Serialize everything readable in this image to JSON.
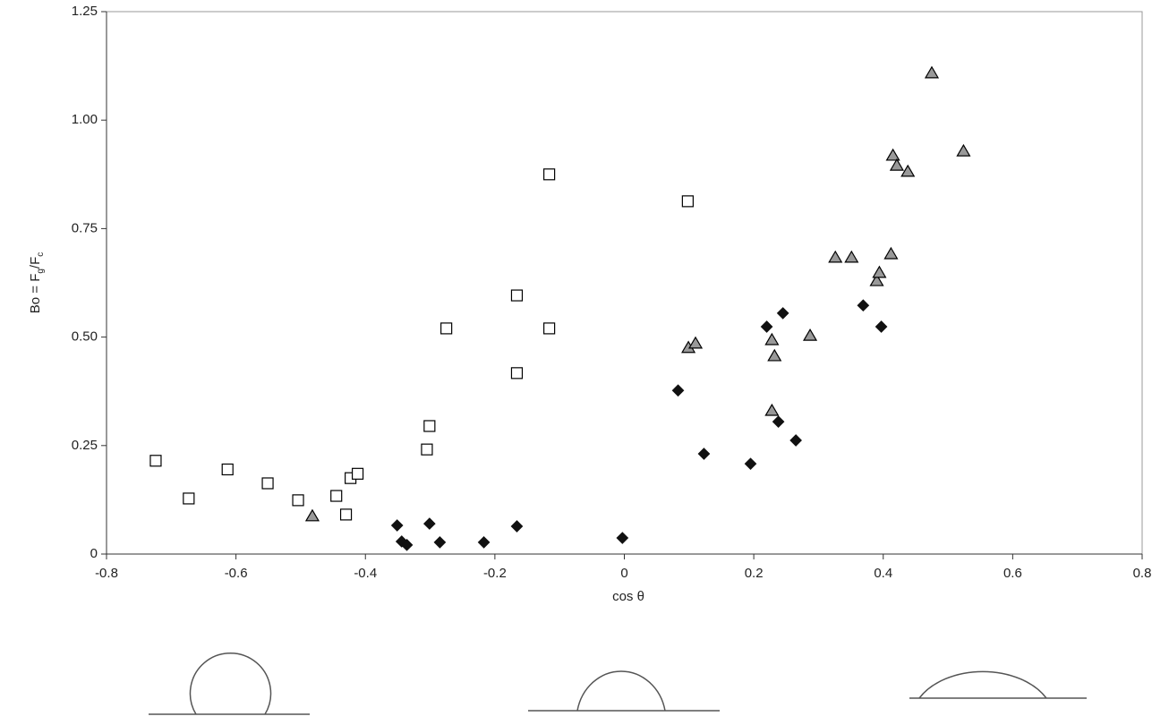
{
  "chart_data": {
    "type": "scatter",
    "xlabel": "cos θ",
    "ylabel": [
      "Bo = F",
      "g",
      "/F",
      "c"
    ],
    "xlim": [
      -0.8,
      0.8
    ],
    "ylim": [
      0,
      1.25
    ],
    "xticks": [
      -0.8,
      -0.6,
      -0.4,
      -0.2,
      0,
      0.2,
      0.4,
      0.6,
      0.8
    ],
    "yticks": [
      0,
      0.25,
      {
        "value": 0.5,
        "label": "0.50"
      },
      0.75,
      {
        "value": 1,
        "label": "1.00"
      },
      1.25
    ],
    "series": [
      {
        "marker": "square",
        "color": "#000000",
        "fill": "#ffffff",
        "x": [
          -0.724,
          -0.673,
          -0.613,
          -0.551,
          -0.504,
          -0.445,
          -0.43,
          -0.423,
          -0.412,
          -0.305,
          -0.301,
          -0.275,
          -0.166,
          -0.166,
          -0.116,
          -0.116,
          0.098
        ],
        "values": [
          0.215,
          0.128,
          0.195,
          0.163,
          0.124,
          0.134,
          0.091,
          0.175,
          0.185,
          0.241,
          0.295,
          0.52,
          0.417,
          0.596,
          0.875,
          0.52,
          0.813
        ]
      },
      {
        "marker": "diamond",
        "color": "#111111",
        "fill": "#111111",
        "x": [
          -0.351,
          -0.344,
          -0.336,
          -0.301,
          -0.285,
          -0.217,
          -0.166,
          -0.003,
          0.083,
          0.123,
          0.195,
          0.22,
          0.238,
          0.245,
          0.265,
          0.369,
          0.397
        ],
        "values": [
          0.066,
          0.029,
          0.021,
          0.07,
          0.027,
          0.027,
          0.064,
          0.037,
          0.377,
          0.231,
          0.208,
          0.524,
          0.305,
          0.555,
          0.262,
          0.573,
          0.524
        ]
      },
      {
        "marker": "triangle",
        "color": "#000000",
        "fill": "#999999",
        "x": [
          -0.482,
          0.099,
          0.11,
          0.228,
          0.232,
          0.228,
          0.287,
          0.326,
          0.351,
          0.39,
          0.394,
          0.412,
          0.415,
          0.421,
          0.438,
          0.475,
          0.524
        ],
        "values": [
          0.087,
          0.475,
          0.485,
          0.493,
          0.456,
          0.33,
          0.503,
          0.683,
          0.683,
          0.629,
          0.648,
          0.691,
          0.918,
          0.895,
          0.881,
          1.108,
          0.928
        ]
      }
    ]
  }
}
